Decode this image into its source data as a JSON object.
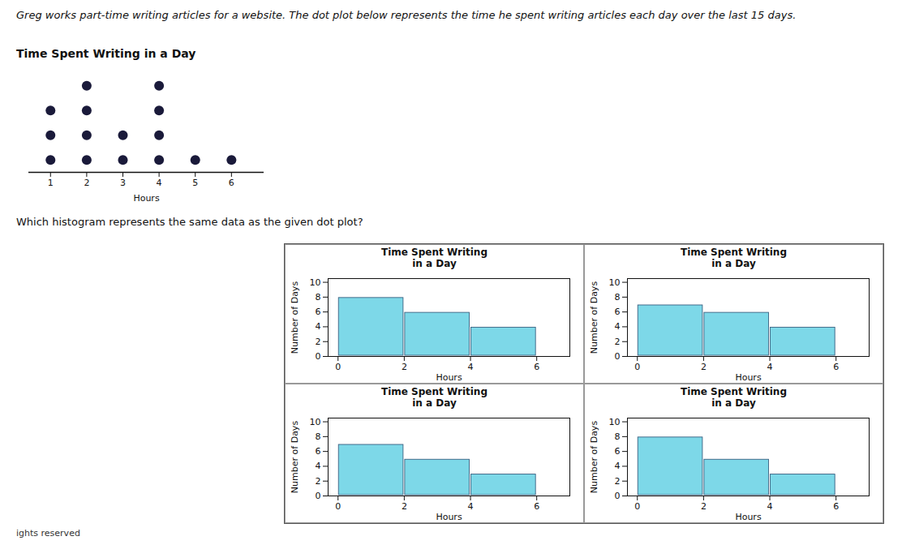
{
  "chart_data": [
    {
      "type": "dot",
      "title": "Time Spent Writing in a Day",
      "annotations": [
        "Greg works part-time writing articles for a website. The dot plot below represents the time he spent writing articles each day over the last 15 days.",
        "Which histogram represents the same data as the given dot plot?",
        "ights reserved"
      ],
      "x": [
        1,
        2,
        3,
        4,
        5,
        6
      ],
      "values": [
        3,
        4,
        2,
        4,
        1,
        1
      ],
      "xlabel": "Hours",
      "xlim": [
        0.4,
        6.9
      ],
      "xticks": [
        1,
        2,
        3,
        4,
        5,
        6
      ],
      "color": "#1a1a3a",
      "tick_labels": "x"
    },
    {
      "type": "histogram",
      "title": "Time Spent Writing\nin a Day",
      "bins": [
        0,
        2,
        4,
        6
      ],
      "values": [
        8,
        6,
        4
      ],
      "xlabel": "Hours",
      "ylabel": "Number of Days",
      "xlim": [
        -0.3,
        7.0
      ],
      "ylim": [
        0,
        10.5
      ],
      "xticks": [
        0,
        2,
        4,
        6
      ],
      "yticks": [
        0,
        2,
        4,
        6,
        8,
        10
      ],
      "color": "#7dd8e8"
    },
    {
      "type": "histogram",
      "title": "Time Spent Writing\nin a Day",
      "bins": [
        0,
        2,
        4,
        6
      ],
      "values": [
        7,
        6,
        4
      ],
      "xlabel": "Hours",
      "ylabel": "Number of Days",
      "xlim": [
        -0.3,
        7.0
      ],
      "ylim": [
        0,
        10.5
      ],
      "xticks": [
        0,
        2,
        4,
        6
      ],
      "yticks": [
        0,
        2,
        4,
        6,
        8,
        10
      ],
      "color": "#7dd8e8"
    },
    {
      "type": "histogram",
      "title": "Time Spent Writing\nin a Day",
      "bins": [
        0,
        2,
        4,
        6
      ],
      "values": [
        7,
        5,
        3
      ],
      "xlabel": "Hours",
      "ylabel": "Number of Days",
      "xlim": [
        -0.3,
        7.0
      ],
      "ylim": [
        0,
        10.5
      ],
      "xticks": [
        0,
        2,
        4,
        6
      ],
      "yticks": [
        0,
        2,
        4,
        6,
        8,
        10
      ],
      "color": "#7dd8e8"
    },
    {
      "type": "histogram",
      "title": "Time Spent Writing\nin a Day",
      "bins": [
        0,
        2,
        4,
        6
      ],
      "values": [
        8,
        5,
        3
      ],
      "xlabel": "Hours",
      "ylabel": "Number of Days",
      "xlim": [
        -0.3,
        7.0
      ],
      "ylim": [
        0,
        10.5
      ],
      "xticks": [
        0,
        2,
        4,
        6
      ],
      "yticks": [
        0,
        2,
        4,
        6,
        8,
        10
      ],
      "color": "#7dd8e8"
    }
  ]
}
